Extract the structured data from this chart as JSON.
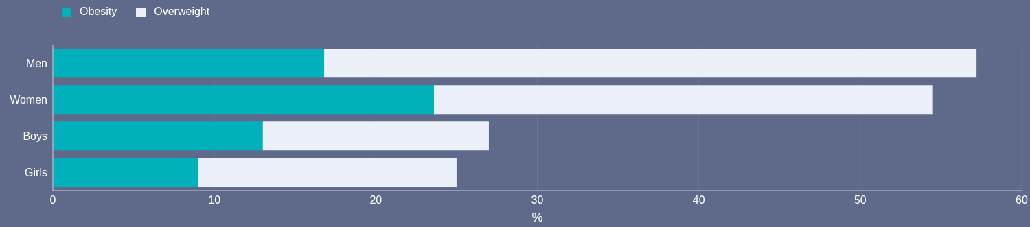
{
  "chart_data": {
    "type": "bar",
    "orientation": "horizontal",
    "stacked": true,
    "xlabel": "%",
    "categories": [
      "Men",
      "Women",
      "Boys",
      "Girls"
    ],
    "series": [
      {
        "name": "Obesity",
        "color": "#00b1bb",
        "values": [
          16.8,
          23.6,
          13.0,
          9.0
        ]
      },
      {
        "name": "Overweight",
        "color": "#ecf0f9",
        "values": [
          40.4,
          30.9,
          14.0,
          16.0
        ]
      }
    ],
    "xlim": [
      0,
      60
    ],
    "xticks": [
      0,
      10,
      20,
      30,
      40,
      50,
      60
    ],
    "grid": "x",
    "legend": "top left"
  }
}
